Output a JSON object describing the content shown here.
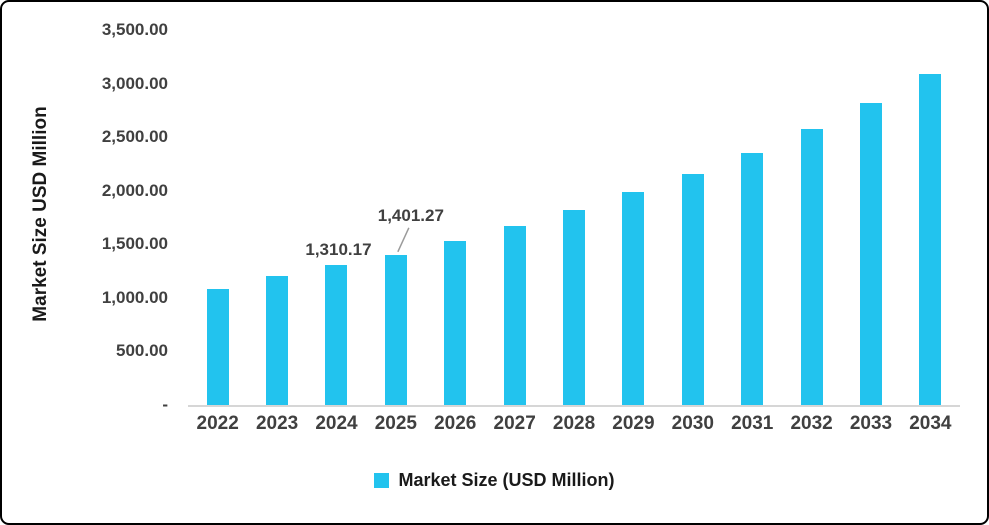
{
  "chart_data": {
    "type": "bar",
    "title": "",
    "xlabel": "",
    "ylabel": "Market Size USD Million",
    "categories": [
      "2022",
      "2023",
      "2024",
      "2025",
      "2026",
      "2027",
      "2028",
      "2029",
      "2030",
      "2031",
      "2032",
      "2033",
      "2034"
    ],
    "series": [
      {
        "name": "Market Size (USD Million)",
        "values": [
          1083,
          1200,
          1310.17,
          1401.27,
          1535,
          1675,
          1820,
          1985,
          2155,
          2350,
          2580,
          2820,
          3090
        ]
      }
    ],
    "ylim": [
      0,
      3500
    ],
    "yticks": [
      {
        "label": "3,500.00",
        "value": 3500
      },
      {
        "label": "3,000.00",
        "value": 3000
      },
      {
        "label": "2,500.00",
        "value": 2500
      },
      {
        "label": "2,000.00",
        "value": 2000
      },
      {
        "label": "1,500.00",
        "value": 1500
      },
      {
        "label": "1,000.00",
        "value": 1000
      },
      {
        "label": "500.00",
        "value": 500
      },
      {
        "label": "-",
        "value": 0
      }
    ],
    "grid": false,
    "legend_position": "bottom",
    "bar_color": "#22C3EE",
    "annotations": [
      {
        "category": "2024",
        "text": "1,310.17",
        "leader": false
      },
      {
        "category": "2025",
        "text": "1,401.27",
        "leader": true
      }
    ]
  },
  "legend": {
    "label": "Market Size (USD Million)"
  }
}
